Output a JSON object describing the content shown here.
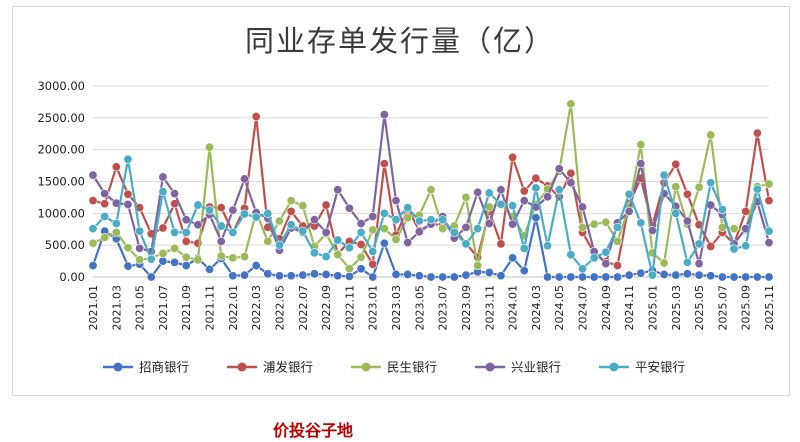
{
  "watermark": "价投谷子地",
  "chart_data": {
    "type": "line",
    "title": "同业存单发行量（亿）",
    "xlabel": "",
    "ylabel": "",
    "ylim": [
      0,
      3000
    ],
    "yticks": [
      0,
      500,
      1000,
      1500,
      2000,
      2500,
      3000
    ],
    "ytick_labels": [
      "0.00",
      "500.00",
      "1000.00",
      "1500.00",
      "2000.00",
      "2500.00",
      "3000.00"
    ],
    "grid": true,
    "legend_position": "bottom",
    "x": [
      "2021.01",
      "2021.02",
      "2021.03",
      "2021.04",
      "2021.05",
      "2021.06",
      "2021.07",
      "2021.08",
      "2021.09",
      "2021.10",
      "2021.11",
      "2021.12",
      "2022.01",
      "2022.02",
      "2022.03",
      "2022.04",
      "2022.05",
      "2022.06",
      "2022.07",
      "2022.08",
      "2022.09",
      "2022.10",
      "2022.11",
      "2022.12",
      "2023.01",
      "2023.02",
      "2023.03",
      "2023.04",
      "2023.05",
      "2023.06",
      "2023.07",
      "2023.08",
      "2023.09",
      "2023.10",
      "2023.11",
      "2023.12",
      "2024.01",
      "2024.02",
      "2024.03",
      "2024.04",
      "2024.05",
      "2024.06",
      "2024.07",
      "2024.08",
      "2024.09",
      "2024.10",
      "2024.11",
      "2024.12",
      "2025.01",
      "2025.02",
      "2025.03",
      "2025.04",
      "2025.05",
      "2025.06",
      "2025.07",
      "2025.08",
      "2025.09",
      "2025.10",
      "2025.11"
    ],
    "x_tick_labels": [
      "2021.01",
      "2021.03",
      "2021.05",
      "2021.07",
      "2021.09",
      "2021.11",
      "2022.01",
      "2022.03",
      "2022.05",
      "2022.07",
      "2022.09",
      "2022.11",
      "2023.01",
      "2023.03",
      "2023.05",
      "2023.07",
      "2023.09",
      "2023.11",
      "2024.01",
      "2024.03",
      "2024.05",
      "2024.07",
      "2024.09",
      "2024.11",
      "2025.01",
      "2025.03",
      "2025.05",
      "2025.07",
      "2025.09",
      "2025.11"
    ],
    "series": [
      {
        "name": "招商银行",
        "color": "#4472c4",
        "values": [
          180,
          720,
          600,
          170,
          200,
          0,
          250,
          230,
          180,
          290,
          120,
          290,
          20,
          30,
          180,
          50,
          20,
          20,
          30,
          50,
          40,
          20,
          10,
          130,
          0,
          530,
          40,
          40,
          20,
          0,
          0,
          0,
          30,
          80,
          70,
          20,
          300,
          100,
          930,
          0,
          0,
          0,
          0,
          0,
          0,
          0,
          30,
          60,
          100,
          40,
          30,
          50,
          30,
          20,
          0,
          0,
          0,
          0,
          0
        ]
      },
      {
        "name": "浦发银行",
        "color": "#c0504d",
        "values": [
          1200,
          1150,
          1730,
          1300,
          1090,
          680,
          770,
          1150,
          560,
          530,
          1100,
          1090,
          700,
          1080,
          2520,
          780,
          600,
          1030,
          800,
          800,
          1130,
          360,
          560,
          510,
          200,
          1780,
          660,
          1070,
          730,
          830,
          820,
          750,
          530,
          310,
          1030,
          520,
          1880,
          1350,
          1550,
          1430,
          1260,
          1630,
          700,
          380,
          240,
          180,
          1150,
          1550,
          810,
          1480,
          1770,
          1300,
          820,
          480,
          700,
          520,
          1030,
          2260,
          1200
        ]
      },
      {
        "name": "民生银行",
        "color": "#9bbb59",
        "values": [
          530,
          620,
          700,
          460,
          270,
          300,
          370,
          450,
          310,
          270,
          2040,
          330,
          300,
          320,
          1020,
          560,
          880,
          1200,
          1120,
          480,
          680,
          350,
          130,
          310,
          740,
          760,
          590,
          930,
          970,
          1370,
          760,
          800,
          1250,
          180,
          1100,
          1150,
          950,
          650,
          1140,
          1380,
          1660,
          2720,
          780,
          830,
          860,
          560,
          1100,
          2080,
          380,
          220,
          1420,
          830,
          1410,
          2230,
          780,
          760,
          740,
          1420,
          1460
        ]
      },
      {
        "name": "兴业银行",
        "color": "#8064a2",
        "values": [
          1600,
          1310,
          1160,
          1140,
          450,
          400,
          1570,
          1310,
          900,
          820,
          980,
          560,
          1050,
          1540,
          1010,
          920,
          420,
          770,
          700,
          900,
          700,
          1370,
          1080,
          840,
          950,
          2550,
          1200,
          540,
          710,
          830,
          950,
          610,
          780,
          1330,
          840,
          1370,
          830,
          1200,
          1100,
          1260,
          1700,
          1480,
          1100,
          400,
          210,
          850,
          1030,
          1780,
          730,
          1310,
          1110,
          880,
          210,
          1130,
          980,
          520,
          760,
          1180,
          540
        ]
      },
      {
        "name": "平安银行",
        "color": "#4bacc6",
        "values": [
          760,
          950,
          840,
          1850,
          720,
          280,
          1340,
          700,
          700,
          1130,
          1050,
          800,
          700,
          990,
          940,
          1000,
          500,
          820,
          720,
          380,
          320,
          580,
          460,
          700,
          400,
          1000,
          900,
          1090,
          880,
          900,
          900,
          700,
          520,
          760,
          1320,
          1140,
          1120,
          450,
          1400,
          490,
          1370,
          350,
          130,
          300,
          390,
          780,
          1300,
          850,
          30,
          1600,
          1000,
          230,
          520,
          1480,
          1060,
          440,
          490,
          1380,
          720
        ]
      }
    ]
  }
}
